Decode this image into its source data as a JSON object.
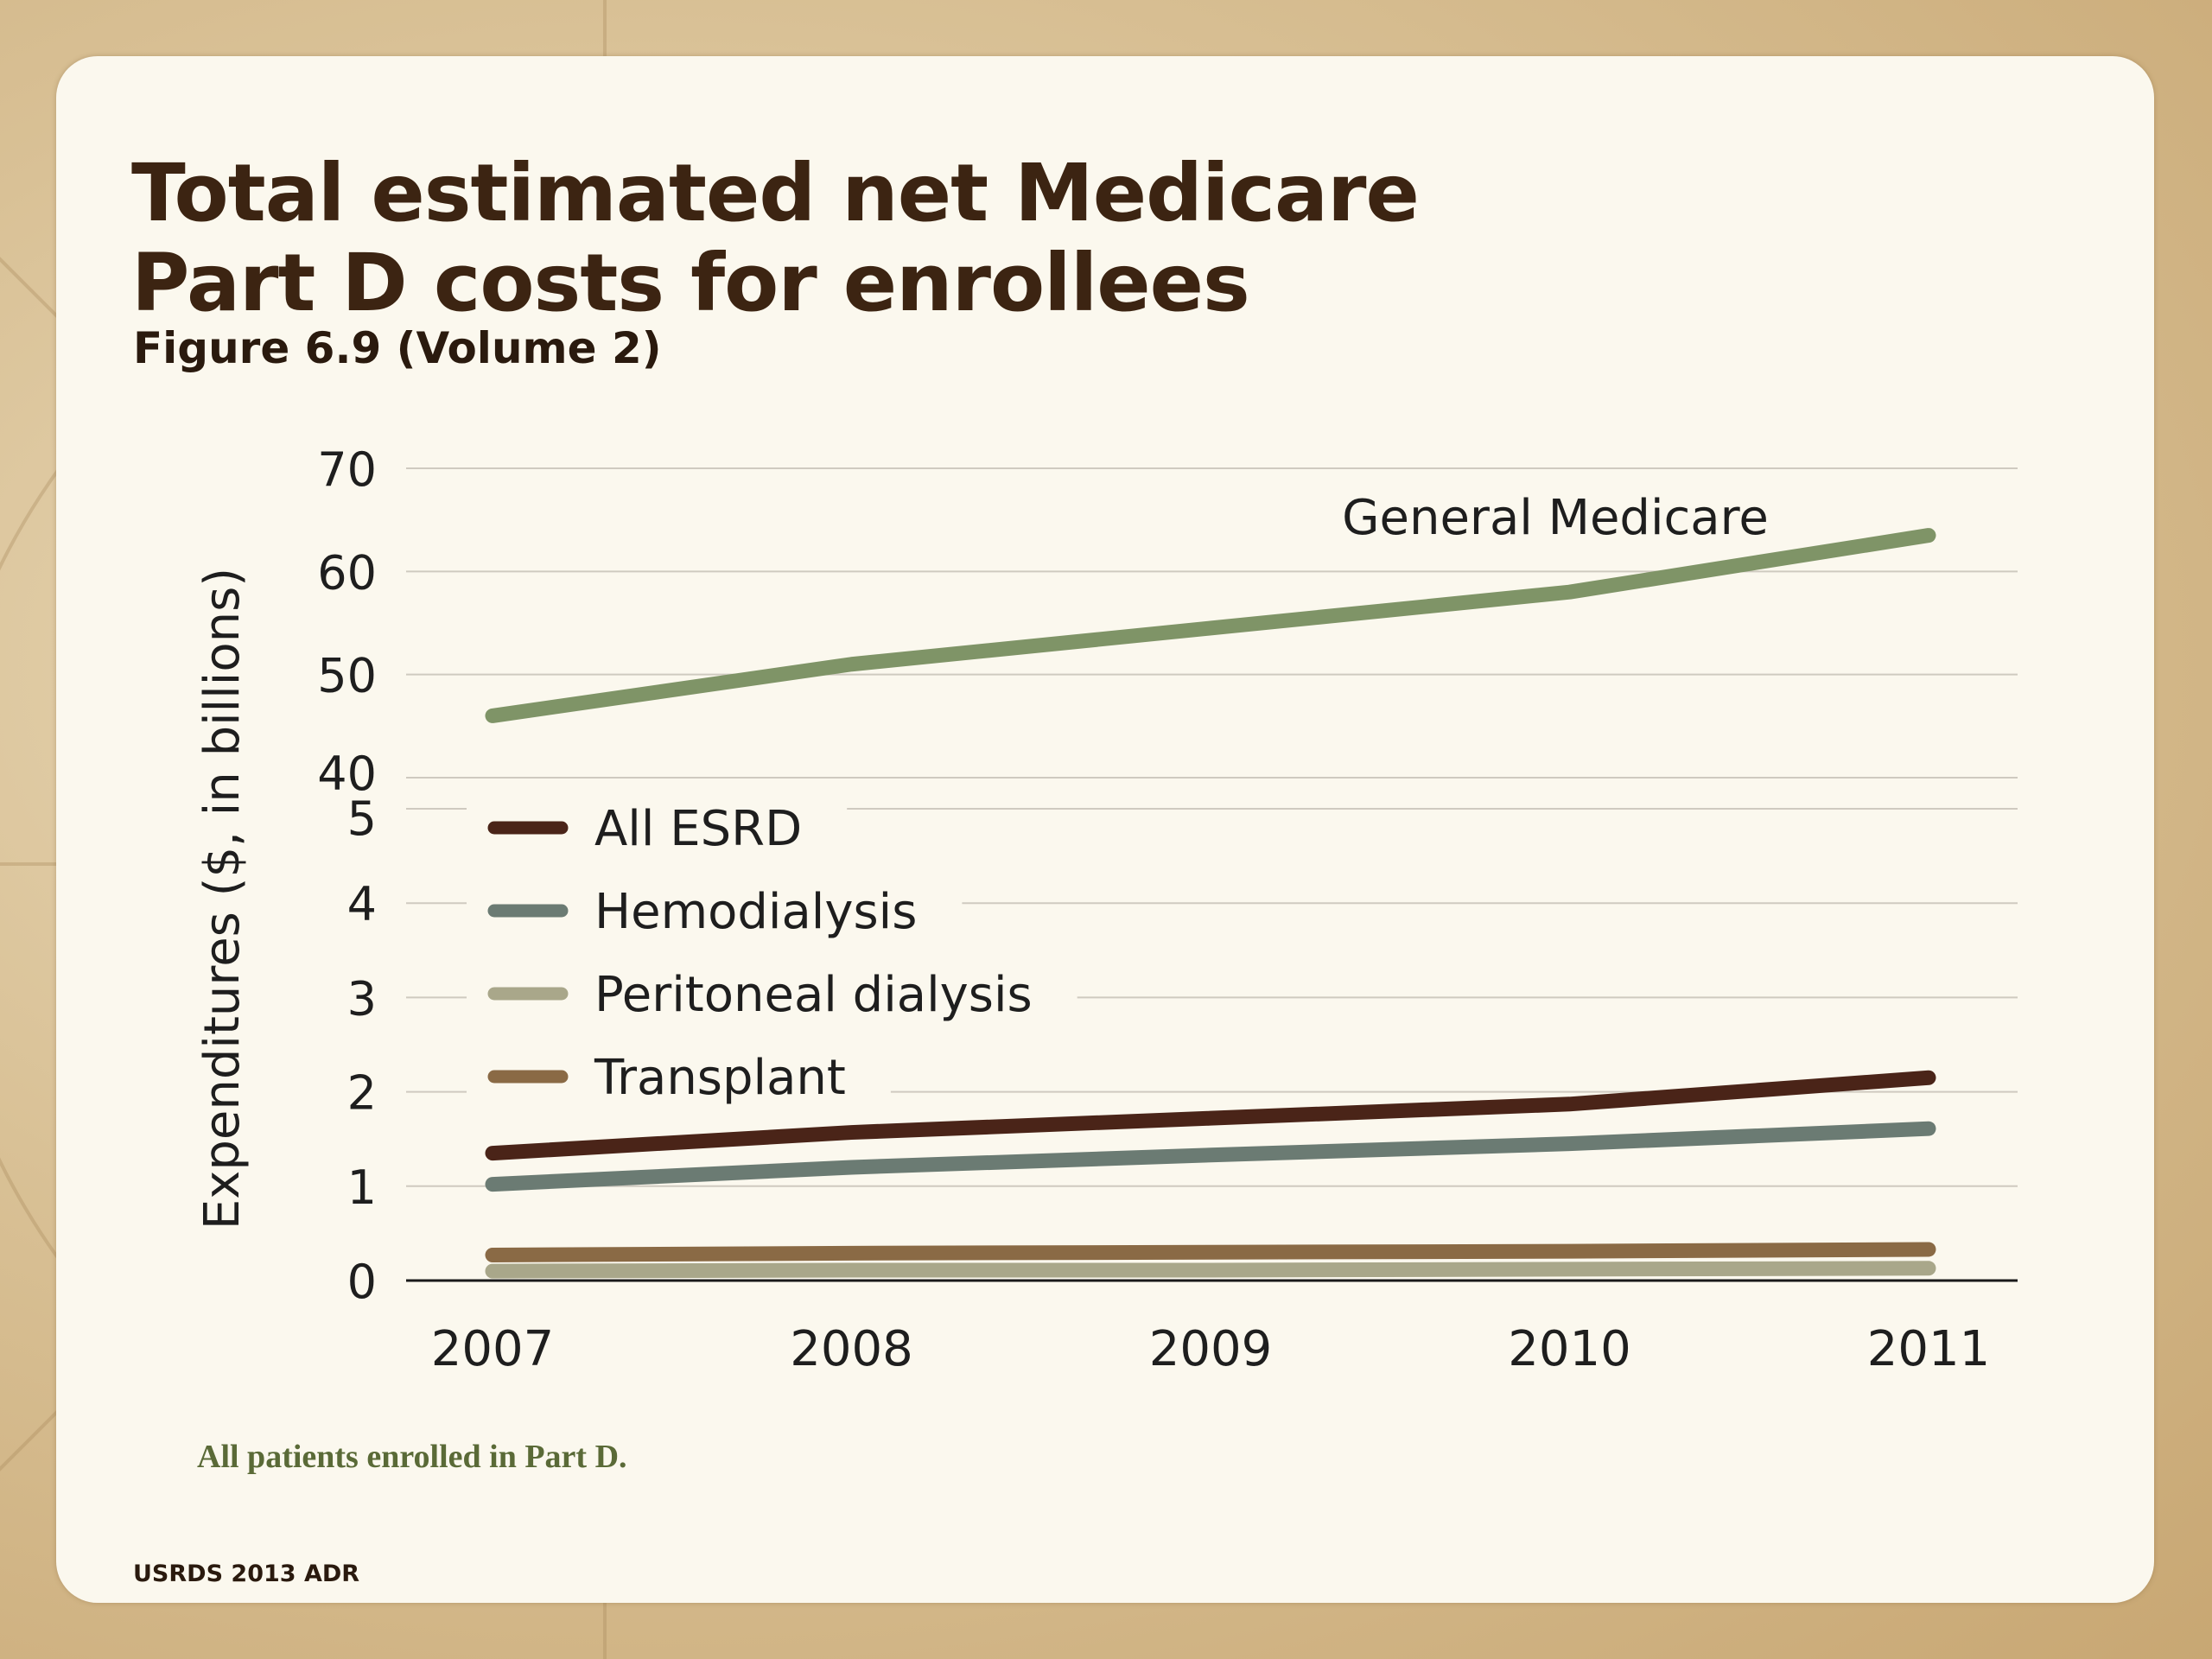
{
  "slide": {
    "title_line1": "Total estimated net Medicare",
    "title_line2": "Part D costs for enrollees",
    "subtitle": "Figure 6.9 (Volume 2)",
    "note": "All patients enrolled in Part D.",
    "source": "USRDS 2013 ADR"
  },
  "chart_data": {
    "type": "line",
    "ylabel": "Expenditures ($, in billions)",
    "xlabel": "",
    "x": [
      "2007",
      "2008",
      "2009",
      "2010",
      "2011"
    ],
    "axis_break": true,
    "upper_panel": {
      "ylim": [
        40,
        70
      ],
      "yticks": [
        "70",
        "60",
        "50",
        "40"
      ],
      "series": [
        {
          "name": "General Medicare",
          "values": [
            46,
            51,
            54.5,
            58,
            63.5
          ],
          "color": "#7f9467"
        }
      ]
    },
    "lower_panel": {
      "ylim": [
        0,
        5
      ],
      "yticks": [
        "5",
        "4",
        "3",
        "2",
        "1",
        "0"
      ],
      "series": [
        {
          "name": "All ESRD",
          "values": [
            1.35,
            1.57,
            1.72,
            1.87,
            2.15
          ],
          "color": "#4a2418"
        },
        {
          "name": "Hemodialysis",
          "values": [
            1.02,
            1.2,
            1.33,
            1.45,
            1.61
          ],
          "color": "#6b7b73"
        },
        {
          "name": "Peritoneal dialysis",
          "values": [
            0.1,
            0.11,
            0.11,
            0.12,
            0.13
          ],
          "color": "#a9a78a"
        },
        {
          "name": "Transplant",
          "values": [
            0.27,
            0.29,
            0.3,
            0.31,
            0.33
          ],
          "color": "#8a6a45"
        }
      ]
    },
    "legend": [
      "All ESRD",
      "Hemodialysis",
      "Peritoneal dialysis",
      "Transplant"
    ],
    "legend_position": "left",
    "grid": true
  }
}
